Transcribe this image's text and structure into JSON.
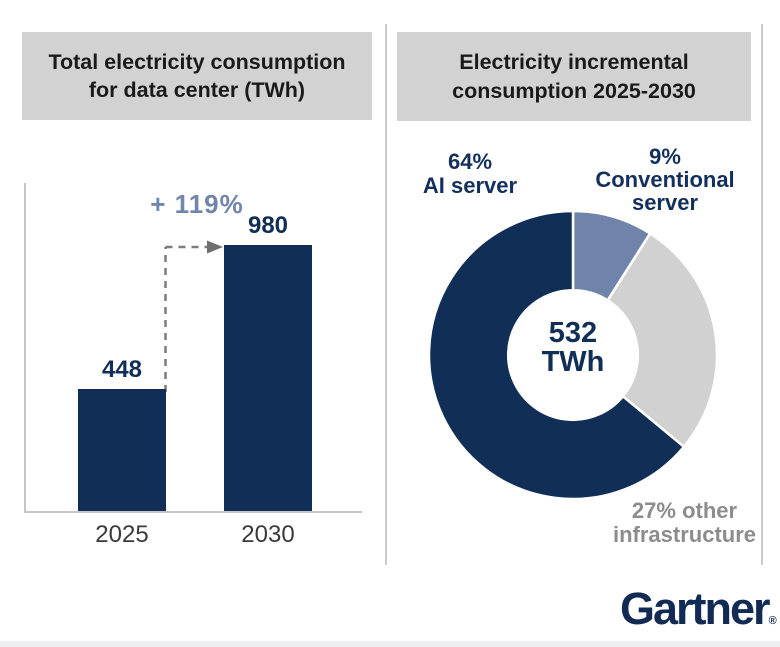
{
  "brand": {
    "logo_text": "Gartner",
    "registered_mark": "®",
    "logo_color": "#112b54"
  },
  "left_panel": {
    "title_line1": "Total electricity consumption",
    "title_line2": "for data center (TWh)"
  },
  "right_panel": {
    "title_line1": "Electricity incremental",
    "title_line2": "consumption 2025-2030"
  },
  "colors": {
    "navy": "#112e57",
    "slate_blue": "#7083aa",
    "light_gray": "#d1d1d1",
    "title_box_gray": "#d2d2d2",
    "annotation_blue": "#7285ac",
    "muted_text_gray": "#8c8c8c"
  },
  "chart_data": [
    {
      "type": "bar",
      "title": "Total electricity consumption for data center (TWh)",
      "categories": [
        "2025",
        "2030"
      ],
      "values": [
        448,
        980
      ],
      "bar_color": "#112e57",
      "annotation": "+ 119%",
      "xlabel": "",
      "ylabel": "TWh",
      "ylim": [
        0,
        980
      ],
      "grid": false
    },
    {
      "type": "pie",
      "title": "Electricity incremental consumption 2025-2030",
      "donut": true,
      "donut_hole_ratio": 0.45,
      "start_angle_deg": 0,
      "center_value": "532",
      "center_unit": "TWh",
      "segments": [
        {
          "label": "9% Conventional server",
          "pct": 9,
          "color": "#7083aa"
        },
        {
          "label": "27% other infrastructure",
          "pct": 27,
          "color": "#d1d1d1"
        },
        {
          "label": "64% AI server",
          "pct": 64,
          "color": "#112e57"
        }
      ]
    }
  ],
  "donut_labels": {
    "ai_line1": "64%",
    "ai_line2": "AI server",
    "conventional_line1": "9%",
    "conventional_line2": "Conventional",
    "conventional_line3": "server",
    "other_line1": "27% other",
    "other_line2": "infrastructure"
  }
}
